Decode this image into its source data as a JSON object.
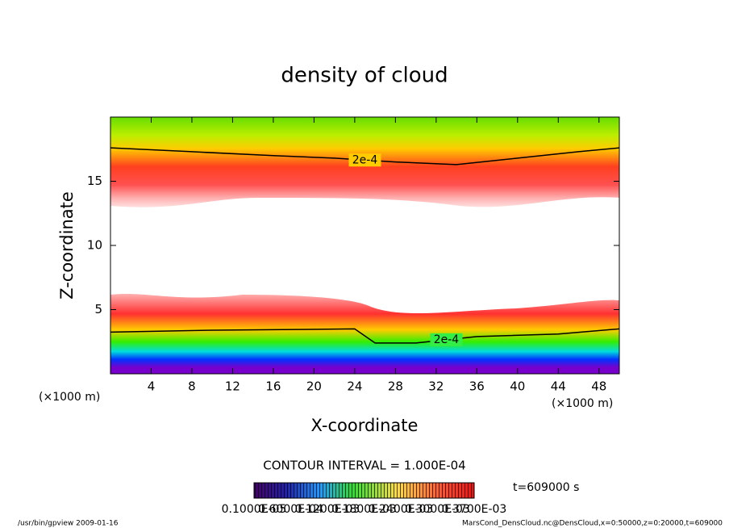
{
  "chart_data": {
    "type": "contour",
    "title": "density of cloud",
    "x_label": "X-coordinate",
    "y_label": "Z-coordinate",
    "x_unit": "(×1000 m)",
    "y_unit": "(×1000 m)",
    "xlim": [
      0,
      50
    ],
    "xticks": [
      4,
      8,
      12,
      16,
      20,
      24,
      28,
      32,
      36,
      40,
      44,
      48
    ],
    "ylim": [
      0,
      20
    ],
    "yticks": [
      5,
      10,
      15
    ],
    "contours": [
      {
        "label": "2e-4",
        "color": "#000000",
        "x": [
          0,
          8,
          16,
          22,
          28,
          34,
          40,
          46,
          50
        ],
        "values": [
          17.6,
          17.3,
          17.0,
          16.8,
          16.5,
          16.3,
          16.8,
          17.3,
          17.6
        ]
      },
      {
        "label": "2e-4",
        "color": "#000000",
        "x": [
          0,
          10,
          18,
          24,
          26,
          30,
          36,
          44,
          50
        ],
        "values": [
          3.25,
          3.4,
          3.45,
          3.5,
          2.4,
          2.4,
          2.9,
          3.1,
          3.5
        ]
      }
    ],
    "contour_interval": "CONTOUR INTERVAL = 1.000E-04",
    "time_label": "t=609000 s",
    "colorbar_labels": [
      "0.1000E-05",
      "0.6000E-04",
      "0.1200E-03",
      "0.1800E-03",
      "0.2400E-03",
      "0.3000E-03",
      "0.3700E-03"
    ],
    "footer_left": "/usr/bin/gpview  2009-01-16",
    "footer_right": "MarsCond_DensCloud.nc@DensCloud,x=0:50000,z=0:20000,t=609000"
  }
}
